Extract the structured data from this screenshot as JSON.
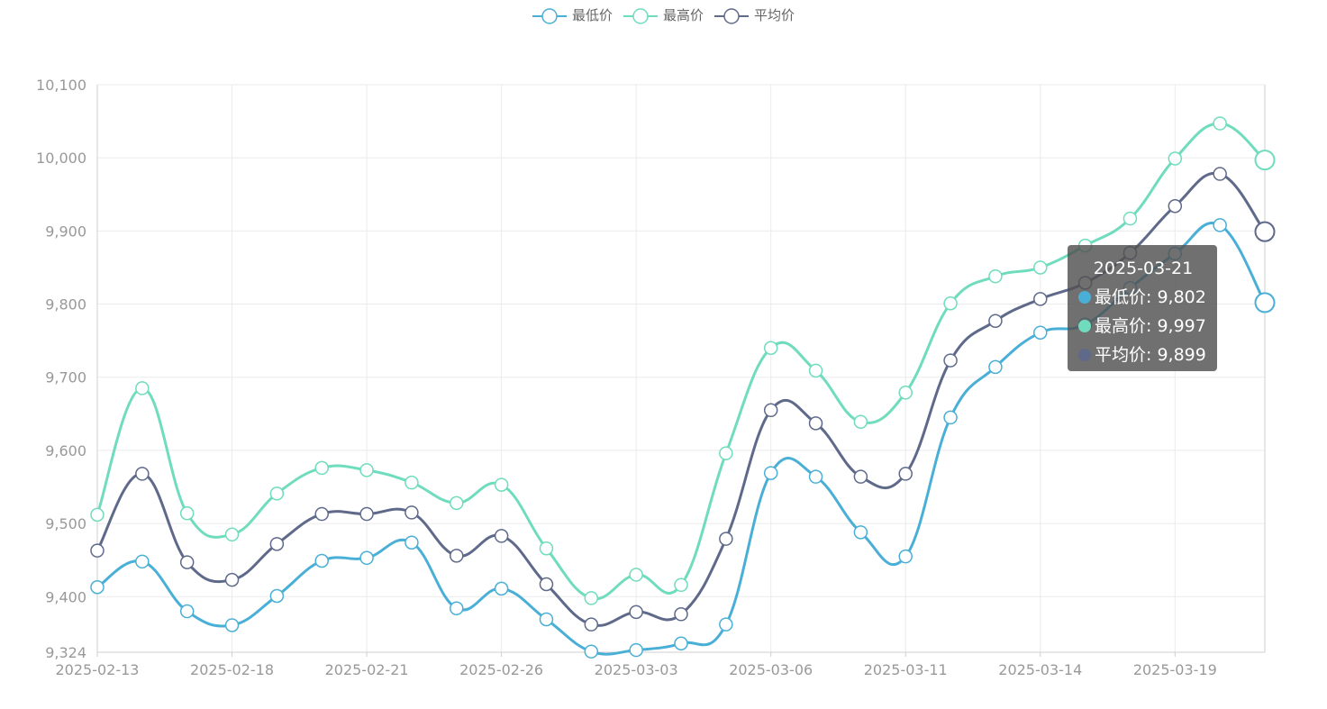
{
  "legend": [
    {
      "label": "最低价",
      "color": "#4aafd6"
    },
    {
      "label": "最高价",
      "color": "#6fdcbd"
    },
    {
      "label": "平均价",
      "color": "#5f6a8a"
    }
  ],
  "tooltip": {
    "date": "2025-03-21",
    "rows": [
      {
        "label": "最低价: 9,802",
        "color": "#4aafd6"
      },
      {
        "label": "最高价: 9,997",
        "color": "#6fdcbd"
      },
      {
        "label": "平均价: 9,899",
        "color": "#5f6a8a"
      }
    ]
  },
  "chart_data": {
    "type": "line",
    "smooth": true,
    "categories": [
      "2025-02-13",
      "2025-02-14",
      "2025-02-17",
      "2025-02-18",
      "2025-02-19",
      "2025-02-20",
      "2025-02-21",
      "2025-02-24",
      "2025-02-25",
      "2025-02-26",
      "2025-02-27",
      "2025-02-28",
      "2025-03-03",
      "2025-03-04",
      "2025-03-05",
      "2025-03-06",
      "2025-03-07",
      "2025-03-10",
      "2025-03-11",
      "2025-03-12",
      "2025-03-13",
      "2025-03-14",
      "2025-03-17",
      "2025-03-18",
      "2025-03-19",
      "2025-03-20",
      "2025-03-21"
    ],
    "x_tick_labels": [
      "2025-02-13",
      "2025-02-18",
      "2025-02-21",
      "2025-02-26",
      "2025-03-03",
      "2025-03-06",
      "2025-03-11",
      "2025-03-14",
      "2025-03-19"
    ],
    "y_tick_labels": [
      "9,324",
      "9,400",
      "9,500",
      "9,600",
      "9,700",
      "9,800",
      "9,900",
      "10,000",
      "10,100"
    ],
    "ylim": [
      9324,
      10100
    ],
    "y_ticks": [
      9324,
      9400,
      9500,
      9600,
      9700,
      9800,
      9900,
      10000,
      10100
    ],
    "grid": true,
    "legend_position": "top-center",
    "series": [
      {
        "name": "最低价",
        "color": "#4aafd6",
        "values": [
          9413,
          9448,
          9380,
          9361,
          9401,
          9449,
          9453,
          9474,
          9384,
          9411,
          9369,
          9325,
          9327,
          9336,
          9362,
          9569,
          9564,
          9488,
          9455,
          9645,
          9714,
          9761,
          9772,
          9822,
          9869,
          9908,
          9802
        ]
      },
      {
        "name": "最高价",
        "color": "#6fdcbd",
        "values": [
          9512,
          9685,
          9514,
          9485,
          9541,
          9576,
          9573,
          9556,
          9528,
          9553,
          9466,
          9398,
          9430,
          9416,
          9596,
          9740,
          9709,
          9639,
          9679,
          9801,
          9838,
          9850,
          9880,
          9917,
          9999,
          10047,
          9997
        ]
      },
      {
        "name": "平均价",
        "color": "#5f6a8a",
        "values": [
          9463,
          9568,
          9447,
          9423,
          9472,
          9513,
          9513,
          9515,
          9456,
          9483,
          9417,
          9362,
          9379,
          9376,
          9479,
          9655,
          9637,
          9564,
          9568,
          9723,
          9777,
          9807,
          9829,
          9870,
          9934,
          9978,
          9899
        ]
      }
    ],
    "highlighted_category": "2025-03-21"
  }
}
